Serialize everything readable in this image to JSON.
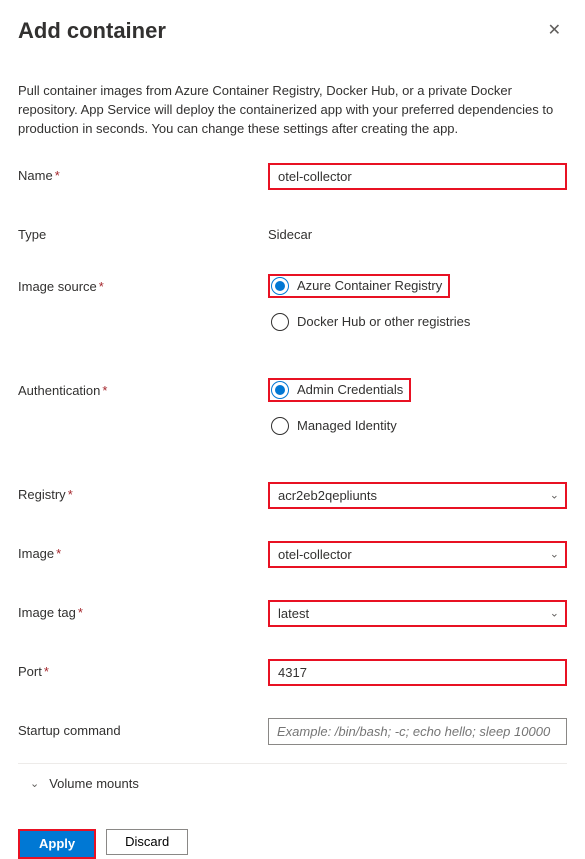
{
  "header": {
    "title": "Add container",
    "close_glyph": "✕"
  },
  "description": "Pull container images from Azure Container Registry, Docker Hub, or a private Docker repository. App Service will deploy the containerized app with your preferred dependencies to production in seconds. You can change these settings after creating the app.",
  "labels": {
    "name": "Name",
    "type": "Type",
    "image_source": "Image source",
    "authentication": "Authentication",
    "registry": "Registry",
    "image": "Image",
    "image_tag": "Image tag",
    "port": "Port",
    "startup_command": "Startup command",
    "volume_mounts": "Volume mounts"
  },
  "values": {
    "name": "otel-collector",
    "type": "Sidecar",
    "registry": "acr2eb2qepliunts",
    "image": "otel-collector",
    "image_tag": "latest",
    "port": "4317",
    "startup_placeholder": "Example: /bin/bash; -c; echo hello; sleep 10000"
  },
  "image_source_options": [
    {
      "label": "Azure Container Registry",
      "selected": true,
      "highlighted": true
    },
    {
      "label": "Docker Hub or other registries",
      "selected": false,
      "highlighted": false
    }
  ],
  "authentication_options": [
    {
      "label": "Admin Credentials",
      "selected": true,
      "highlighted": true
    },
    {
      "label": "Managed Identity",
      "selected": false,
      "highlighted": false
    }
  ],
  "buttons": {
    "apply": "Apply",
    "discard": "Discard"
  },
  "colors": {
    "highlight_border": "#e81123",
    "primary": "#0078d4",
    "text": "#323130",
    "muted": "#605e5c",
    "border_gray": "#8a8886"
  },
  "glyphs": {
    "chevron_down": "⌄"
  }
}
